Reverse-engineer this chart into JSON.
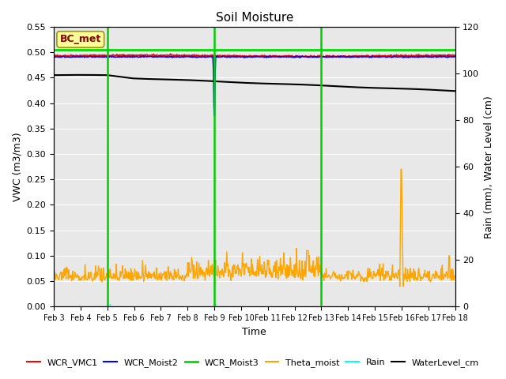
{
  "title": "Soil Moisture",
  "xlabel": "Time",
  "ylabel_left": "VWC (m3/m3)",
  "ylabel_right": "Rain (mm), Water Level (cm)",
  "annotation_text": "BC_met",
  "annotation_color": "#8B0000",
  "annotation_bg": "#FFFF99",
  "ylim_left": [
    0.0,
    0.55
  ],
  "ylim_right": [
    0,
    120
  ],
  "yticks_left": [
    0.0,
    0.05,
    0.1,
    0.15,
    0.2,
    0.25,
    0.3,
    0.35,
    0.4,
    0.45,
    0.5,
    0.55
  ],
  "yticks_right": [
    0,
    20,
    40,
    60,
    80,
    100,
    120
  ],
  "xtick_labels": [
    "Feb 3",
    "Feb 4",
    "Feb 5",
    "Feb 6",
    "Feb 7",
    "Feb 8",
    "Feb 9",
    "Feb 10",
    "Feb 11",
    "Feb 12",
    "Feb 13",
    "Feb 14",
    "Feb 15",
    "Feb 16",
    "Feb 17",
    "Feb 18"
  ],
  "vlines": [
    2.0,
    6.0,
    10.0
  ],
  "vline_color": "#00CC00",
  "vline_lw": 1.8,
  "bg_color": "#E8E8E8",
  "wcr_vmc1_color": "red",
  "wcr_moist2_color": "blue",
  "wcr_moist3_color": "#00DD00",
  "theta_color": "orange",
  "rain_color": "cyan",
  "water_color": "black",
  "figsize": [
    6.4,
    4.8
  ],
  "dpi": 100
}
